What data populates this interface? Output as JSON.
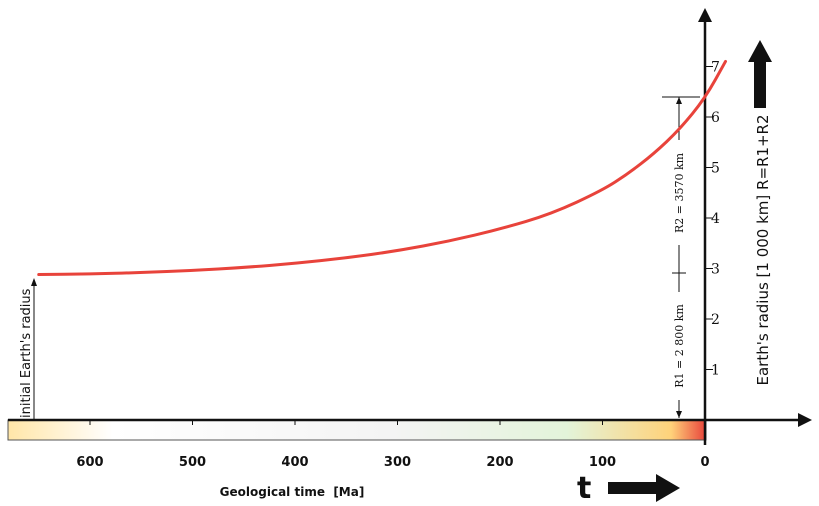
{
  "chart_data": {
    "type": "line",
    "xlabel": "Geological time  [Ma]",
    "ylabel": "Earth's radius [1 000 km] R=R1+R2",
    "x_ticks": [
      600,
      500,
      400,
      300,
      200,
      100,
      0
    ],
    "y_ticks": [
      1,
      2,
      3,
      4,
      5,
      6,
      7
    ],
    "xlim": [
      680,
      -10
    ],
    "ylim": [
      0,
      7.6
    ],
    "series": [
      {
        "name": "",
        "color": "#e8433b",
        "x": [
          650,
          600,
          550,
          500,
          450,
          400,
          350,
          300,
          250,
          200,
          150,
          100,
          75,
          50,
          25,
          0,
          -20
        ],
        "y": [
          2.88,
          2.89,
          2.92,
          2.96,
          3.02,
          3.1,
          3.21,
          3.35,
          3.54,
          3.78,
          4.08,
          4.55,
          4.88,
          5.27,
          5.75,
          6.37,
          7.1
        ]
      }
    ],
    "annotations": {
      "initial_radius_label": "initial Earth's radius",
      "r1_label": "R1 = 2 800 km",
      "r2_label": "R2 = 3570 km",
      "time_symbol": "t"
    },
    "colors": {
      "curve": "#e8433b",
      "axes": "#111111",
      "bar_gradient": [
        "#ffe6a8",
        "#bde6b4",
        "#f0f0f0",
        "#ffffff",
        "#f5a623",
        "#e8433b"
      ]
    },
    "grid": false
  }
}
